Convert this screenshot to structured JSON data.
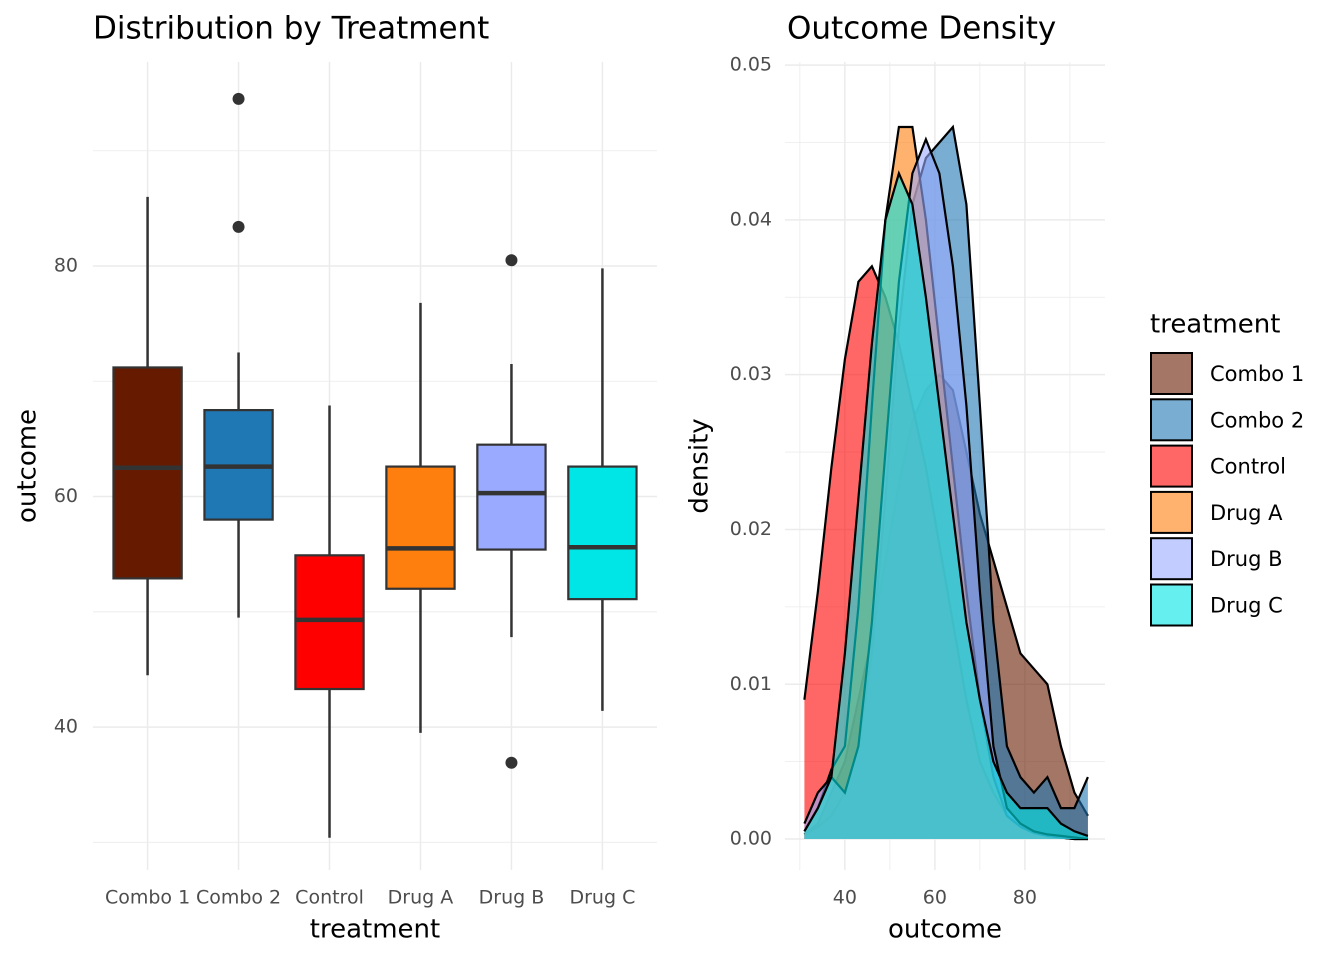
{
  "chart_data": [
    {
      "type": "box",
      "title": "Distribution by Treatment",
      "x_label": "treatment",
      "y_label": "outcome",
      "categories": [
        "Combo 1",
        "Combo 2",
        "Control",
        "Drug A",
        "Drug B",
        "Drug C"
      ],
      "boxes": [
        {
          "color": "#661b00",
          "min": 44.5,
          "q1": 52.9,
          "median": 62.5,
          "q3": 71.2,
          "max": 86.0,
          "outliers": []
        },
        {
          "color": "#1f78b4",
          "min": 49.5,
          "q1": 58.0,
          "median": 62.6,
          "q3": 67.5,
          "max": 72.5,
          "outliers": [
            94.5,
            83.4
          ]
        },
        {
          "color": "#ff0000",
          "min": 30.4,
          "q1": 43.3,
          "median": 49.3,
          "q3": 54.9,
          "max": 67.9,
          "outliers": []
        },
        {
          "color": "#ff7f0e",
          "min": 39.5,
          "q1": 52.0,
          "median": 55.5,
          "q3": 62.6,
          "max": 76.8,
          "outliers": []
        },
        {
          "color": "#99aaff",
          "min": 47.8,
          "q1": 55.4,
          "median": 60.3,
          "q3": 64.5,
          "max": 71.5,
          "outliers": [
            80.5,
            36.9
          ]
        },
        {
          "color": "#00e5e5",
          "min": 41.4,
          "q1": 51.1,
          "median": 55.6,
          "q3": 62.6,
          "max": 79.8,
          "outliers": []
        }
      ],
      "ylim": [
        27.6,
        97.7
      ],
      "yticks": [
        40,
        60,
        80
      ],
      "grid": true
    },
    {
      "type": "density",
      "title": "Outcome Density",
      "x_label": "outcome",
      "y_label": "density",
      "x": [
        31,
        34,
        37,
        40,
        43,
        46,
        49,
        52,
        55,
        58,
        61,
        64,
        67,
        70,
        73,
        76,
        79,
        82,
        85,
        88,
        91,
        94
      ],
      "series": [
        {
          "name": "Combo 1",
          "color": "#661b00",
          "values": [
            0.0003,
            0.001,
            0.003,
            0.005,
            0.009,
            0.013,
            0.018,
            0.023,
            0.027,
            0.029,
            0.03,
            0.029,
            0.025,
            0.021,
            0.018,
            0.015,
            0.012,
            0.011,
            0.01,
            0.006,
            0.003,
            0.0015
          ]
        },
        {
          "name": "Combo 2",
          "color": "#1f78b4",
          "values": [
            0.0003,
            0.0008,
            0.0015,
            0.003,
            0.006,
            0.012,
            0.022,
            0.033,
            0.041,
            0.044,
            0.045,
            0.046,
            0.041,
            0.028,
            0.014,
            0.006,
            0.004,
            0.003,
            0.004,
            0.002,
            0.002,
            0.004
          ]
        },
        {
          "name": "Control",
          "color": "#ff0000",
          "values": [
            0.009,
            0.016,
            0.024,
            0.031,
            0.036,
            0.037,
            0.035,
            0.032,
            0.028,
            0.024,
            0.019,
            0.014,
            0.009,
            0.005,
            0.003,
            0.0015,
            0.0008,
            0.0004,
            0.0002,
            0.0001,
            0,
            0
          ]
        },
        {
          "name": "Drug A",
          "color": "#ff7f0e",
          "values": [
            0.0005,
            0.002,
            0.0045,
            0.006,
            0.015,
            0.028,
            0.04,
            0.046,
            0.046,
            0.04,
            0.032,
            0.024,
            0.016,
            0.009,
            0.004,
            0.0015,
            0.0008,
            0.0004,
            0.0002,
            0.0001,
            0,
            0
          ]
        },
        {
          "name": "Drug B",
          "color": "#99aaff",
          "values": [
            0.001,
            0.003,
            0.004,
            0.003,
            0.006,
            0.014,
            0.025,
            0.036,
            0.043,
            0.0452,
            0.043,
            0.037,
            0.028,
            0.016,
            0.006,
            0.002,
            0.001,
            0.0005,
            0.0003,
            0.0002,
            0.0001,
            0
          ]
        },
        {
          "name": "Drug C",
          "color": "#00e5e5",
          "values": [
            0.0005,
            0.002,
            0.004,
            0.012,
            0.022,
            0.032,
            0.04,
            0.043,
            0.041,
            0.035,
            0.028,
            0.021,
            0.014,
            0.009,
            0.005,
            0.003,
            0.002,
            0.002,
            0.002,
            0.001,
            0.0005,
            0.0002
          ]
        }
      ],
      "fill_alpha": 0.6,
      "xlim": [
        26.7,
        97.8
      ],
      "ylim": [
        -0.002,
        0.0502
      ],
      "xticks": [
        40,
        60,
        80
      ],
      "yticks": [
        {
          "value": 0,
          "label": "0.00"
        },
        0.01,
        0.02,
        0.03,
        0.04,
        0.05
      ],
      "legend_title": "treatment",
      "legend": "right",
      "grid": true
    }
  ]
}
